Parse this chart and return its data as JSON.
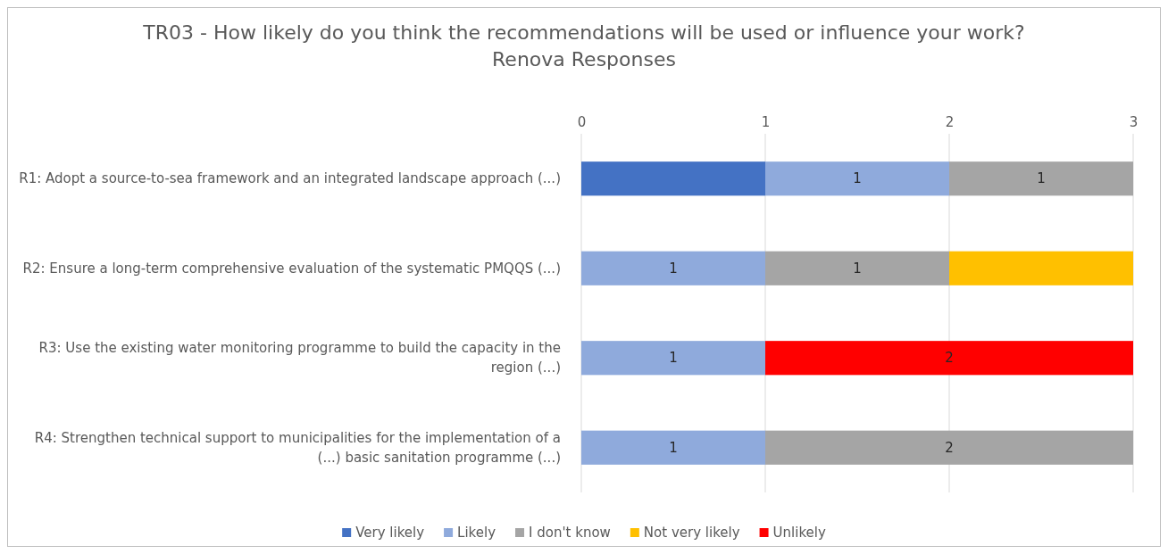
{
  "chart_data": {
    "type": "bar",
    "orientation": "horizontal",
    "stacked": true,
    "title": "TR03 - How likely do you think the recommendations will be used or influence your work? Renova Responses",
    "categories": [
      "R1: Adopt a source-to-sea framework and an integrated landscape approach (...)",
      "R2: Ensure a long-term comprehensive evaluation of the systematic PMQQS (...)",
      "R3: Use the existing water monitoring programme to build the capacity in the region (...)",
      "R4: Strengthen technical support to municipalities for the implementation of a (...) basic sanitation programme (...)"
    ],
    "series": [
      {
        "name": "Very likely",
        "color": "#4472c4",
        "values": [
          1,
          null,
          null,
          null
        ],
        "value_labels": [
          null,
          null,
          null,
          null
        ]
      },
      {
        "name": "Likely",
        "color": "#8faadc",
        "values": [
          1,
          1,
          1,
          1
        ],
        "value_labels": [
          "1",
          "1",
          "1",
          "1"
        ]
      },
      {
        "name": "I don't know",
        "color": "#a5a5a5",
        "values": [
          1,
          1,
          null,
          2
        ],
        "value_labels": [
          "1",
          "1",
          null,
          "2"
        ]
      },
      {
        "name": "Not very likely",
        "color": "#ffc000",
        "values": [
          null,
          1,
          null,
          null
        ],
        "value_labels": [
          null,
          null,
          null,
          null
        ]
      },
      {
        "name": "Unlikely",
        "color": "#ff0000",
        "values": [
          null,
          null,
          2,
          null
        ],
        "value_labels": [
          null,
          null,
          "2",
          null
        ]
      }
    ],
    "xlim": [
      0,
      3
    ],
    "xticks": [
      0,
      1,
      2,
      3
    ],
    "grid": "x",
    "legend": "bottom"
  }
}
